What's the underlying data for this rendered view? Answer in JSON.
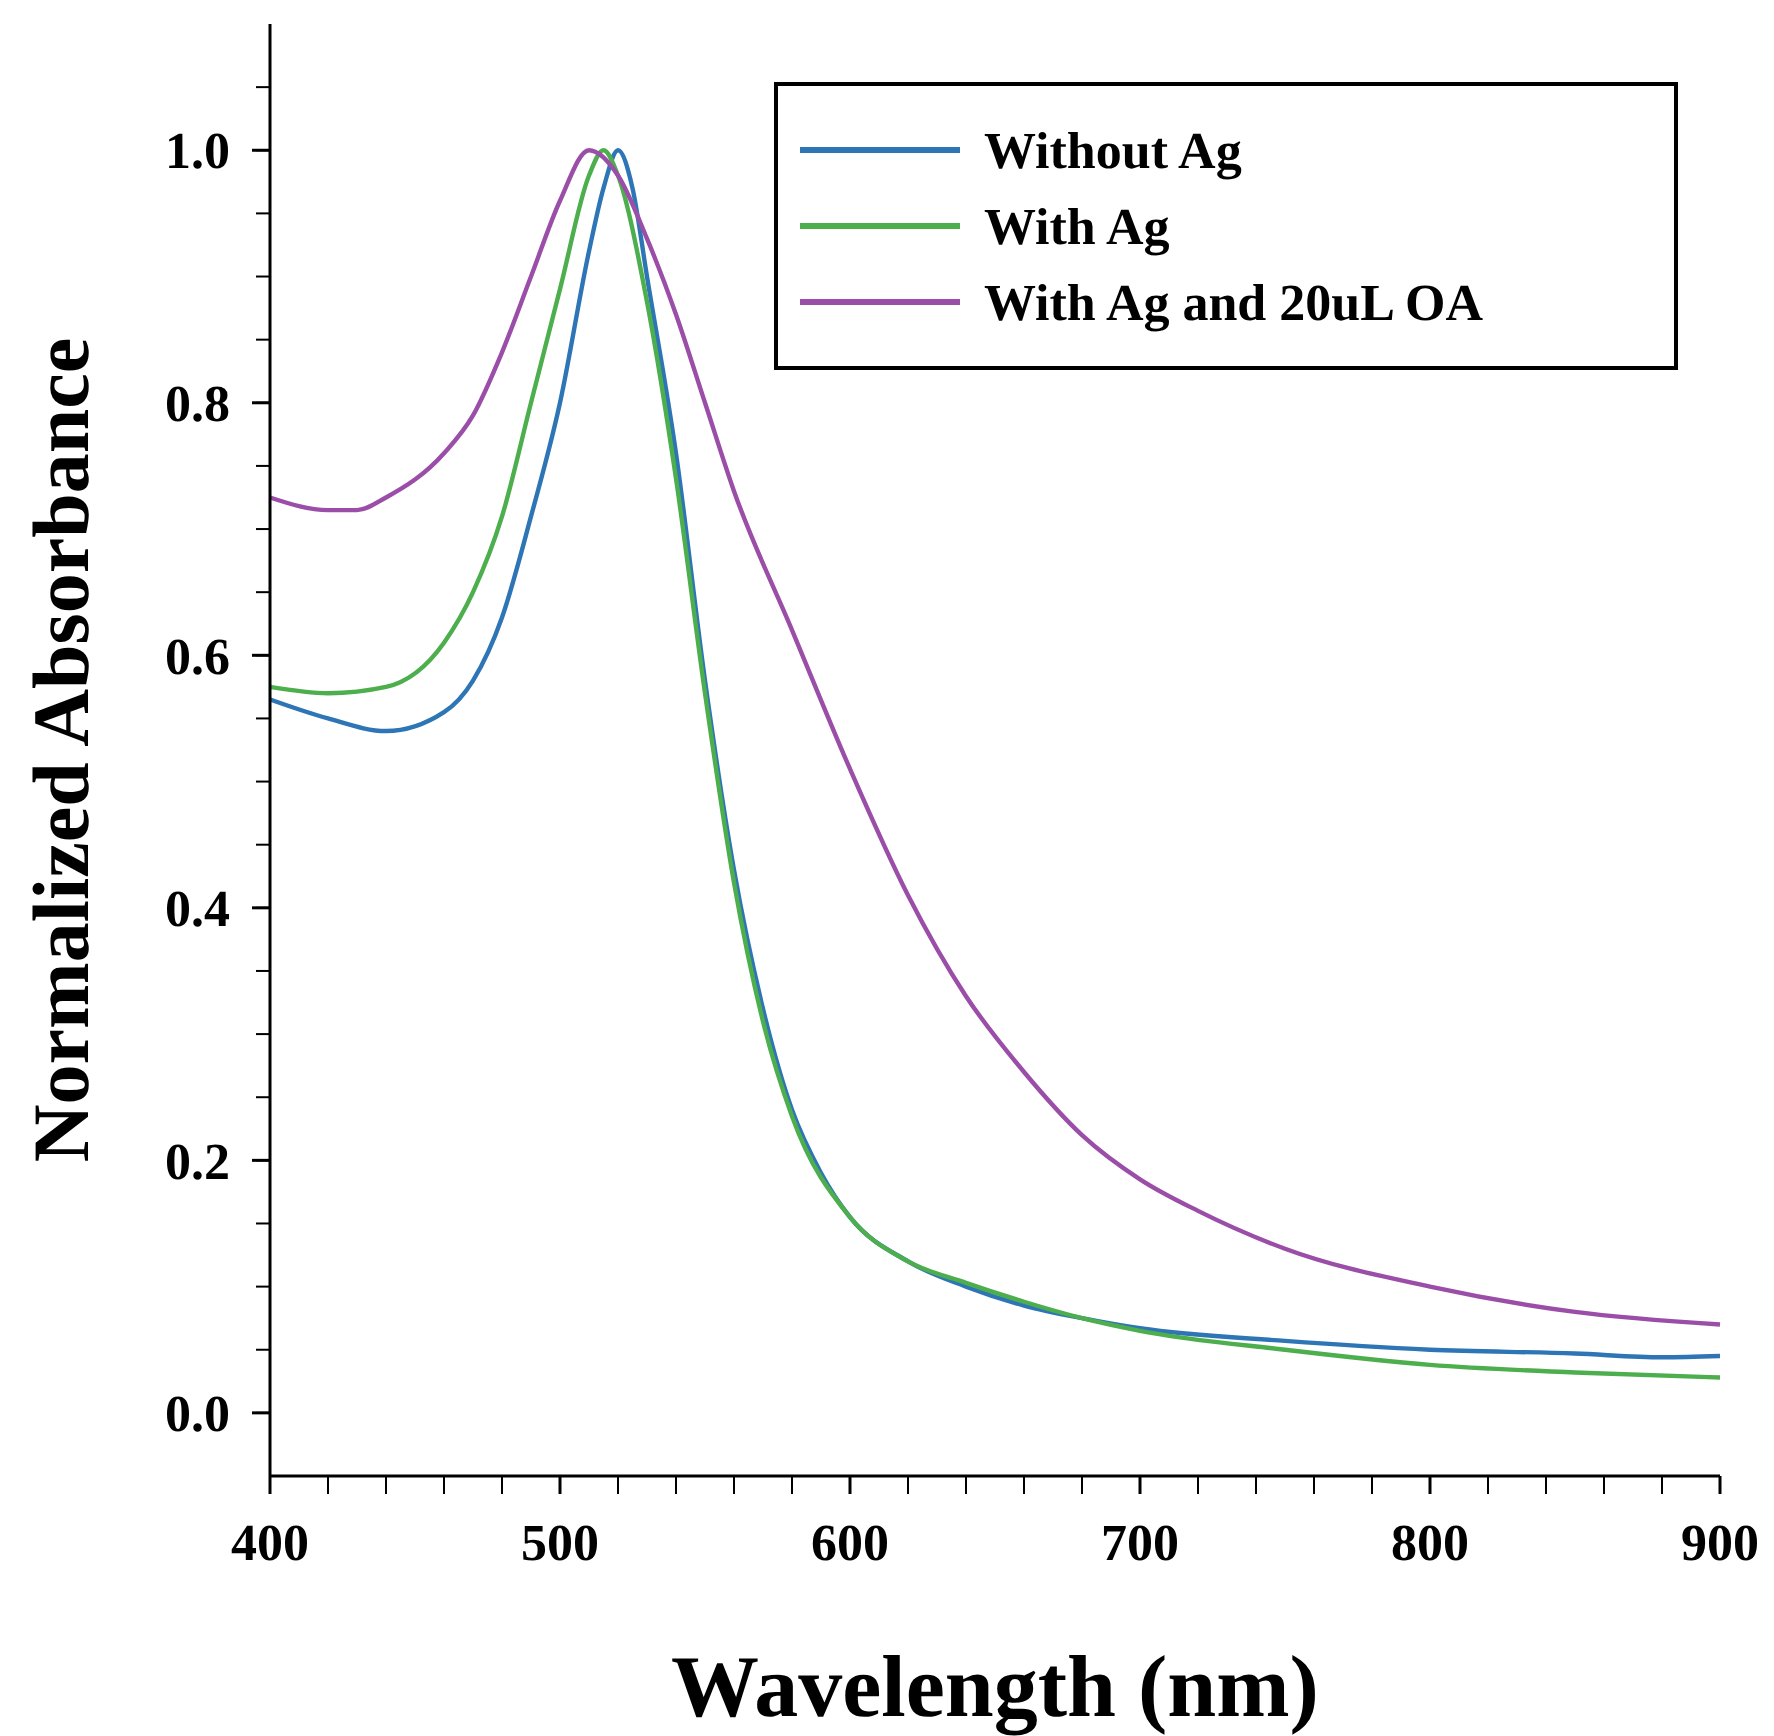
{
  "chart_data": {
    "type": "line",
    "xlabel": "Wavelength (nm)",
    "ylabel": "Normalized Absorbance",
    "xlim": [
      400,
      900
    ],
    "xticks": [
      400,
      500,
      600,
      700,
      800,
      900
    ],
    "ylim": [
      -0.05,
      1.1
    ],
    "yticks": [
      {
        "value": 0,
        "label": "0.0"
      },
      0.2,
      0.4,
      0.6,
      0.8,
      {
        "value": 1,
        "label": "1.0"
      }
    ],
    "grid": false,
    "legend": "top right",
    "marker": "none",
    "line_style": "solid",
    "series": [
      {
        "name": "Without Ag",
        "color": "#2e75b6",
        "x": [
          400,
          420,
          440,
          460,
          470,
          480,
          490,
          500,
          510,
          515,
          520,
          525,
          530,
          540,
          550,
          560,
          570,
          580,
          590,
          600,
          620,
          640,
          660,
          680,
          700,
          750,
          800,
          850,
          880,
          900
        ],
        "values": [
          0.565,
          0.55,
          0.54,
          0.555,
          0.58,
          0.63,
          0.71,
          0.8,
          0.92,
          0.97,
          1.0,
          0.97,
          0.9,
          0.76,
          0.58,
          0.43,
          0.32,
          0.24,
          0.19,
          0.155,
          0.12,
          0.1,
          0.085,
          0.075,
          0.067,
          0.057,
          0.05,
          0.047,
          0.044,
          0.045
        ]
      },
      {
        "name": "With Ag",
        "color": "#4cae4c",
        "x": [
          400,
          420,
          440,
          460,
          470,
          480,
          490,
          500,
          510,
          515,
          520,
          530,
          540,
          550,
          560,
          570,
          580,
          600,
          620,
          640,
          660,
          680,
          700,
          750,
          800,
          850,
          900
        ],
        "values": [
          0.575,
          0.57,
          0.575,
          0.61,
          0.65,
          0.71,
          0.8,
          0.89,
          0.98,
          1.0,
          0.98,
          0.88,
          0.74,
          0.57,
          0.42,
          0.31,
          0.235,
          0.155,
          0.12,
          0.103,
          0.088,
          0.075,
          0.065,
          0.05,
          0.038,
          0.032,
          0.028
        ]
      },
      {
        "name": "With Ag and 20uL OA",
        "color": "#9b4ea8",
        "x": [
          400,
          420,
          430,
          440,
          460,
          470,
          480,
          490,
          500,
          510,
          520,
          530,
          540,
          550,
          560,
          580,
          600,
          620,
          640,
          660,
          680,
          700,
          720,
          750,
          800,
          850,
          900
        ],
        "values": [
          0.725,
          0.715,
          0.715,
          0.725,
          0.76,
          0.79,
          0.84,
          0.9,
          0.96,
          1.0,
          0.98,
          0.93,
          0.87,
          0.8,
          0.73,
          0.62,
          0.51,
          0.41,
          0.33,
          0.27,
          0.22,
          0.185,
          0.16,
          0.13,
          0.1,
          0.08,
          0.07
        ]
      }
    ]
  }
}
